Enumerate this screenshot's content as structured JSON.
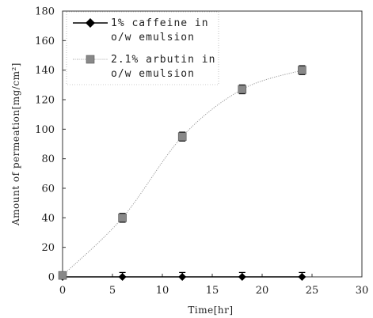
{
  "chart_data": {
    "type": "line",
    "xlabel": "Time[hr]",
    "ylabel": "Amount of permeation[mg/cm²]",
    "xlim": [
      0,
      30
    ],
    "ylim": [
      0,
      180
    ],
    "xticks": [
      0,
      5,
      10,
      15,
      20,
      25,
      30
    ],
    "yticks": [
      0,
      20,
      40,
      60,
      80,
      100,
      120,
      140,
      160,
      180
    ],
    "grid": false,
    "legend_position": "top-left",
    "series": [
      {
        "name": "1% caffeine in o/w emulsion",
        "marker": "diamond",
        "color": "#000000",
        "x": [
          0,
          6,
          12,
          18,
          24
        ],
        "y": [
          0,
          0,
          0,
          0,
          0
        ],
        "err": [
          2,
          3,
          3,
          3,
          3
        ]
      },
      {
        "name": "2.1% arbutin in o/w emulsion",
        "marker": "square",
        "color": "#888888",
        "x": [
          0,
          6,
          12,
          18,
          24
        ],
        "y": [
          1,
          40,
          95,
          127,
          140
        ],
        "err": [
          2,
          3,
          3,
          3,
          3
        ]
      }
    ]
  }
}
